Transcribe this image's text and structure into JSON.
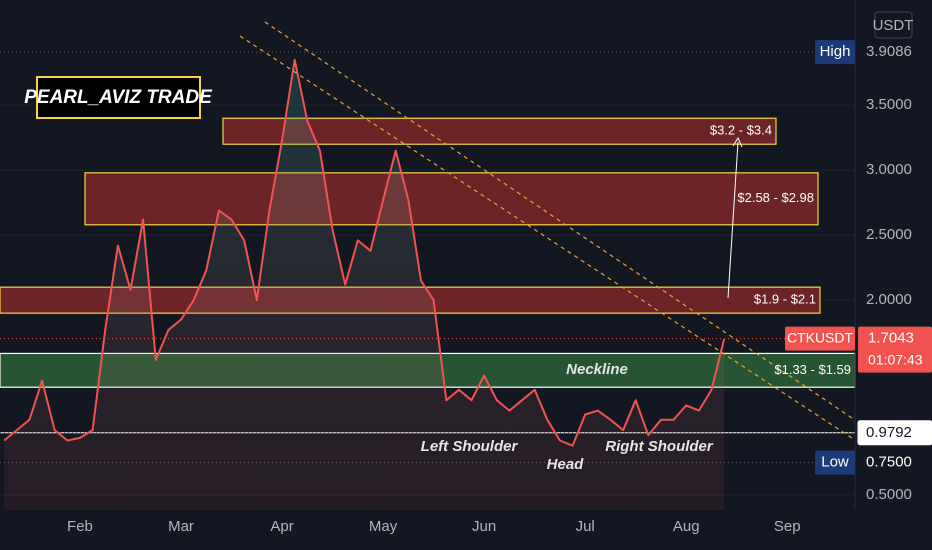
{
  "chart_data": {
    "type": "line",
    "title": "PEARL_AVIZ TRADE",
    "currency": "USDT",
    "categories": [
      null,
      null,
      null,
      null,
      null,
      null,
      "Feb",
      null,
      null,
      null,
      null,
      null,
      null,
      null,
      "Mar",
      null,
      null,
      null,
      null,
      null,
      null,
      null,
      "Apr",
      null,
      null,
      null,
      null,
      null,
      null,
      null,
      "May",
      null,
      null,
      null,
      null,
      null,
      null,
      null,
      "Jun",
      null,
      null,
      null,
      null,
      null,
      null,
      null,
      "Jul",
      null,
      null,
      null,
      null,
      null,
      null,
      null,
      "Aug",
      null,
      null,
      null,
      null,
      null,
      null,
      null,
      "Sep",
      null,
      null,
      null,
      null,
      null
    ],
    "series": [
      {
        "name": "CTKUSDT",
        "color": "#f05350",
        "values": [
          0.92,
          1.0,
          1.08,
          1.38,
          1.0,
          0.92,
          0.94,
          1.0,
          1.77,
          2.42,
          2.08,
          2.62,
          1.54,
          1.77,
          1.85,
          2.0,
          2.23,
          2.69,
          2.62,
          2.46,
          2.0,
          2.69,
          3.23,
          3.85,
          3.38,
          3.15,
          2.54,
          2.12,
          2.46,
          2.38,
          2.77,
          3.15,
          2.77,
          2.15,
          2.0,
          1.23,
          1.31,
          1.23,
          1.42,
          1.23,
          1.15,
          1.23,
          1.31,
          1.08,
          0.92,
          0.88,
          1.12,
          1.15,
          1.08,
          1.0,
          1.23,
          0.96,
          1.08,
          1.08,
          1.19,
          1.15,
          1.31,
          1.7,
          null,
          null,
          null,
          null,
          null,
          null,
          null,
          null,
          null,
          null
        ]
      }
    ],
    "ylim": [
      0.385,
      4.31
    ],
    "yticks": [
      {
        "value": 0.5,
        "label": "0.5000"
      },
      {
        "value": 2.0,
        "label": "2.0000"
      },
      {
        "value": 2.5,
        "label": "2.5000"
      },
      {
        "value": 3.0,
        "label": "3.0000"
      },
      {
        "value": 3.5,
        "label": "3.5000"
      }
    ],
    "grid": true,
    "last": {
      "value": 1.7043,
      "countdown": "01:07:43"
    },
    "high": {
      "label": "High",
      "value": 3.9086
    },
    "low": {
      "label": "Low",
      "value": {
        "value": 0.75,
        "label": "0.7500"
      }
    },
    "neckline": {
      "label": "Neckline",
      "value": 0.9792
    },
    "zones": [
      {
        "label": "$3.2 - $3.4",
        "range": [
          3.2,
          3.4
        ],
        "color": "#8b2a2a",
        "border": "#f5d547"
      },
      {
        "label": "$2.58 - $2.98",
        "range": [
          2.58,
          2.98
        ],
        "color": "#8b2a2a",
        "border": "#f5d547"
      },
      {
        "label": "$1.9 - $2.1",
        "range": [
          1.9,
          2.1
        ],
        "color": "#8b2a2a",
        "border": "#f5d547"
      },
      {
        "label": "$1.33 - $1.59",
        "range": [
          1.33,
          1.59
        ],
        "color": "#2e6b3a",
        "border": "#ffffff"
      }
    ],
    "annotations": [
      "Left Shoulder",
      "Head",
      "Right Shoulder"
    ]
  }
}
